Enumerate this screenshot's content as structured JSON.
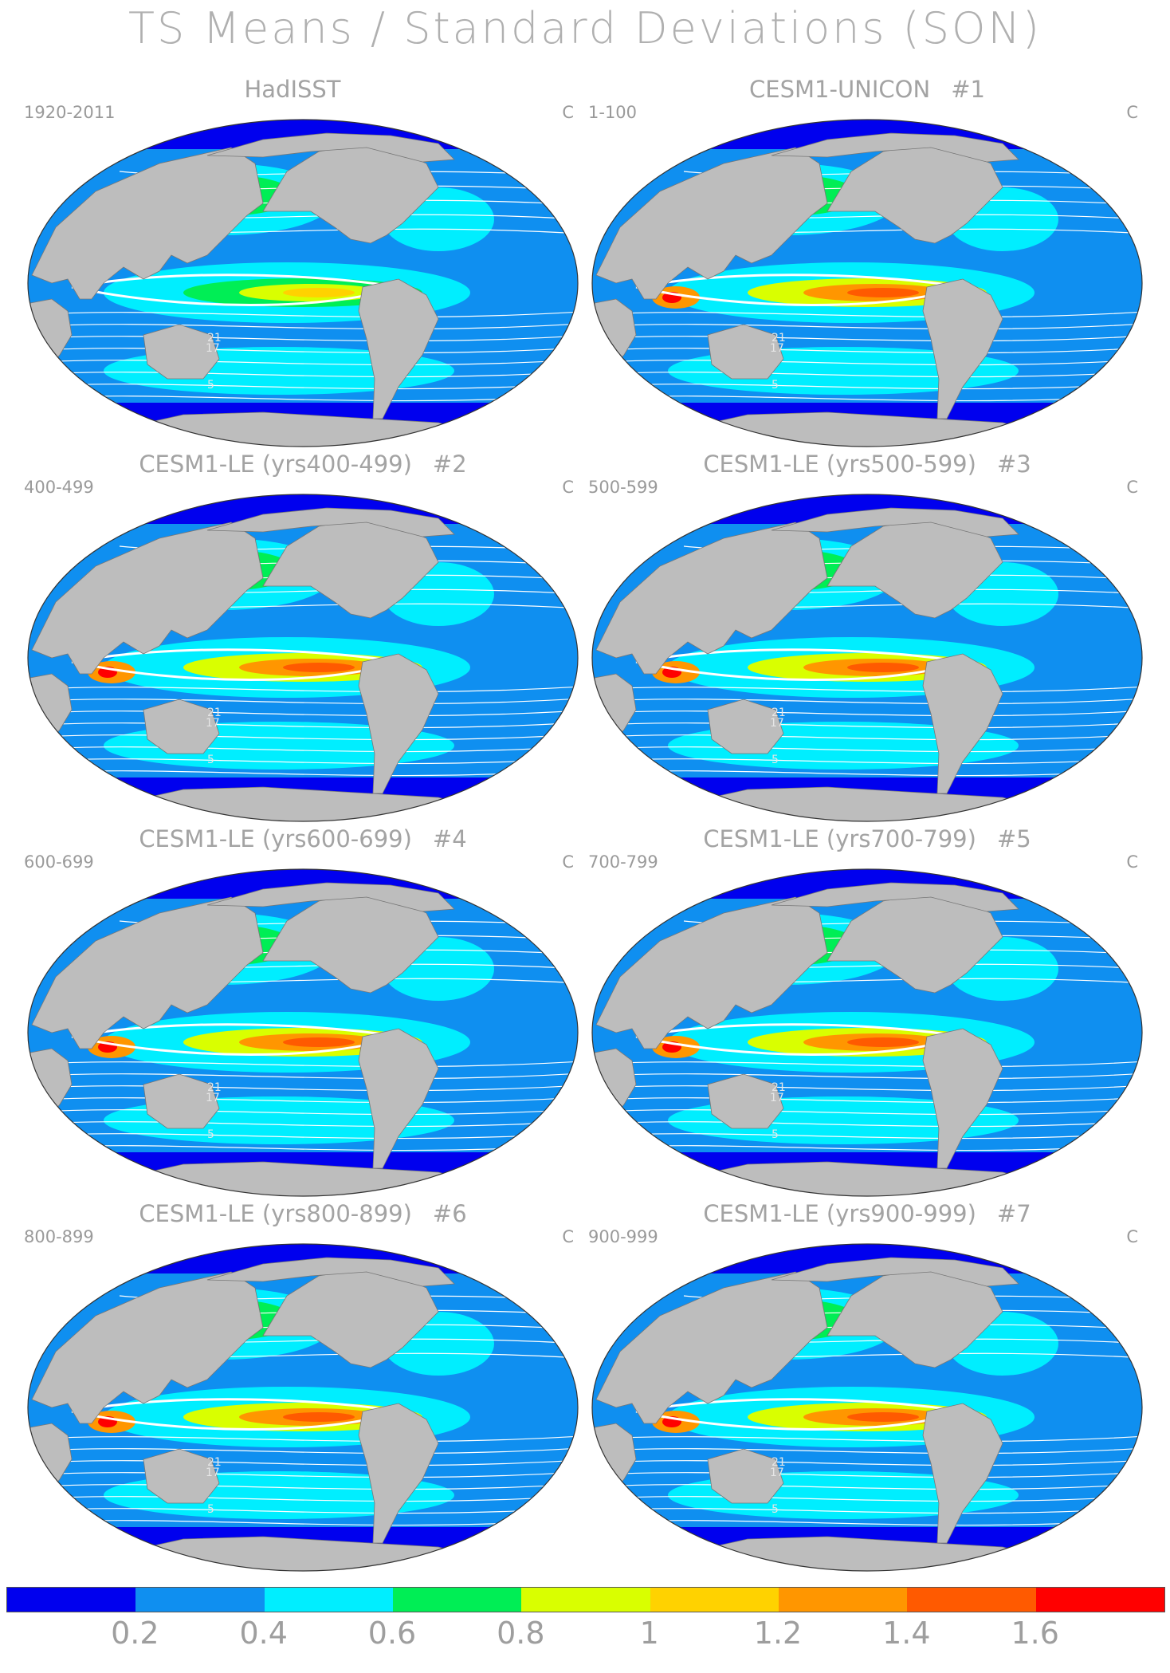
{
  "title": "TS Means / Standard Deviations (SON)",
  "unit": "C",
  "panels": [
    {
      "title": "HadISST",
      "number": "",
      "years": "1920-2011",
      "variant": "obs"
    },
    {
      "title": "CESM1-UNICON",
      "number": "#1",
      "years": "1-100",
      "variant": "unicon"
    },
    {
      "title": "CESM1-LE (yrs400-499)",
      "number": "#2",
      "years": "400-499",
      "variant": "le"
    },
    {
      "title": "CESM1-LE (yrs500-599)",
      "number": "#3",
      "years": "500-599",
      "variant": "le"
    },
    {
      "title": "CESM1-LE (yrs600-699)",
      "number": "#4",
      "years": "600-699",
      "variant": "le"
    },
    {
      "title": "CESM1-LE (yrs700-799)",
      "number": "#5",
      "years": "700-799",
      "variant": "le"
    },
    {
      "title": "CESM1-LE (yrs800-899)",
      "number": "#6",
      "years": "800-899",
      "variant": "le"
    },
    {
      "title": "CESM1-LE (yrs900-999)",
      "number": "#7",
      "years": "900-999",
      "variant": "le"
    }
  ],
  "colorbar": {
    "colors": [
      "#0000ee",
      "#0f8ff0",
      "#00eeff",
      "#00ee55",
      "#d9ff00",
      "#ffd200",
      "#ff9600",
      "#ff5a00",
      "#ff0000"
    ],
    "labels": [
      "0.2",
      "0.4",
      "0.6",
      "0.8",
      "1",
      "1.2",
      "1.4",
      "1.6"
    ]
  },
  "contour_labels": [
    "21",
    "17",
    "5"
  ],
  "colors": {
    "land": "#bdbdbd",
    "ocean_base": "#0f8ff0",
    "contour": "#ffffff"
  }
}
